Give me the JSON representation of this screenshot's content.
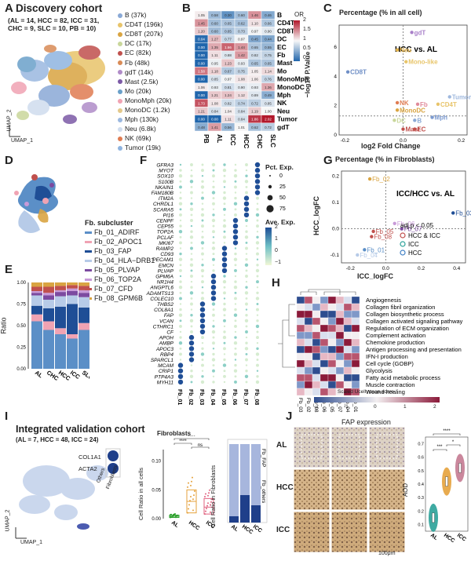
{
  "panels": {
    "A": {
      "letter": "A",
      "title": "Discovery cohort",
      "subtitle1": "(AL = 14, HCC = 82, ICC = 31,",
      "subtitle2": "CHC = 9, SLC = 10, PB = 10)",
      "umap2": "UMAP_2",
      "umap1": "UMAP_1",
      "legend": [
        {
          "label": "B (37k)",
          "color": "#8aa9d6"
        },
        {
          "label": "CD4T (196k)",
          "color": "#e8c46a"
        },
        {
          "label": "CD8T (207k)",
          "color": "#d9a441"
        },
        {
          "label": "DC (17k)",
          "color": "#c9d79b"
        },
        {
          "label": "EC (82k)",
          "color": "#c0504d"
        },
        {
          "label": "Fb (48k)",
          "color": "#d98b57"
        },
        {
          "label": "gdT (14k)",
          "color": "#b08cc8"
        },
        {
          "label": "Mast (2.5k)",
          "color": "#7c5aa6"
        },
        {
          "label": "Mo (20k)",
          "color": "#6aa0c9"
        },
        {
          "label": "MonoMph (20k)",
          "color": "#f0a3b3"
        },
        {
          "label": "MonoDC (1.2k)",
          "color": "#e3c88a"
        },
        {
          "label": "Mph (130k)",
          "color": "#9bb8e0"
        },
        {
          "label": "Neu (6.8k)",
          "color": "#cfdcee"
        },
        {
          "label": "NK (69k)",
          "color": "#e07c52"
        },
        {
          "label": "Tumor (19k)",
          "color": "#8fb4e0"
        }
      ]
    },
    "B": {
      "letter": "B",
      "rows": [
        "B",
        "CD4T",
        "CD8T",
        "DC",
        "EC",
        "Fb",
        "Mast",
        "Mo",
        "MonoMph",
        "MonoDC",
        "Mph",
        "NK",
        "Neu",
        "Tumor",
        "gdT"
      ],
      "cols": [
        "PB",
        "AL",
        "ICC",
        "HCC",
        "CHC",
        "SLC"
      ],
      "legend_title": "OR",
      "legend_ticks": [
        "2",
        "1.5",
        "1",
        "0.5",
        "0"
      ],
      "values": [
        [
          "1.05",
          "0.58",
          "0.30",
          "0.60",
          "1.46",
          "0.46"
        ],
        [
          "1.45",
          "0.60",
          "0.65",
          "0.62",
          "1.10",
          "0.66"
        ],
        [
          "1.20",
          "0.60",
          "0.65",
          "0.73",
          "0.97",
          "0.90"
        ],
        [
          "0.04",
          "1.27",
          "0.77",
          "0.97",
          "0.45",
          "0.44"
        ],
        [
          "0.00",
          "1.35",
          "1.66",
          "1.44",
          "0.65",
          "0.55"
        ],
        [
          "0.00",
          "1.11",
          "0.88",
          "1.42",
          "0.82",
          "0.75"
        ],
        [
          "0.00",
          "0.95",
          "1.23",
          "0.93",
          "0.65",
          "0.65"
        ],
        [
          "1.58",
          "1.18",
          "0.67",
          "0.75",
          "1.05",
          "1.14"
        ],
        [
          "0.00",
          "0.85",
          "0.97",
          "1.08",
          "1.06",
          "0.76"
        ],
        [
          "1.06",
          "0.93",
          "0.81",
          "0.90",
          "0.93",
          "1.36"
        ],
        [
          "0.00",
          "1.21",
          "1.24",
          "1.12",
          "0.89",
          "0.49"
        ],
        [
          "1.73",
          "1.08",
          "0.82",
          "0.74",
          "0.72",
          "0.85"
        ],
        [
          "1.21",
          "0.84",
          "1.04",
          "0.84",
          "1.19",
          "1.00"
        ],
        [
          "0.00",
          "0.00",
          "1.11",
          "0.84",
          "1.86",
          "2.02"
        ],
        [
          "0.48",
          "1.41",
          "0.56",
          "1.01",
          "0.62",
          "0.72"
        ]
      ]
    },
    "C": {
      "letter": "C",
      "title": "Percentage (% in all cell)",
      "comparison": "HCC vs. AL",
      "xlabel": "log2 Fold Change",
      "ylabel": "−log10 P.Value",
      "xticks": [
        "-0.2",
        "0.0",
        "0.2"
      ],
      "yticks": [
        "0",
        "2",
        "4",
        "6"
      ],
      "points": [
        {
          "label": "gdT",
          "x": 0.03,
          "y": 7.0,
          "color": "#a980c9"
        },
        {
          "label": "Neu",
          "x": -0.02,
          "y": 5.8,
          "color": "#e3b24a"
        },
        {
          "label": "Mono-like",
          "x": 0.01,
          "y": 5.0,
          "color": "#e8c56a"
        },
        {
          "label": "CD8T",
          "x": -0.19,
          "y": 4.3,
          "color": "#6f8fc6"
        },
        {
          "label": "Tumor",
          "x": 0.16,
          "y": 2.6,
          "color": "#9fb8de"
        },
        {
          "label": "NK",
          "x": -0.02,
          "y": 2.2,
          "color": "#e07c52"
        },
        {
          "label": "Fb",
          "x": 0.05,
          "y": 2.1,
          "color": "#e08a9a"
        },
        {
          "label": "CD4T",
          "x": 0.12,
          "y": 2.1,
          "color": "#e8c46a"
        },
        {
          "label": "MonoDC",
          "x": -0.02,
          "y": 1.7,
          "color": "#d9a441"
        },
        {
          "label": "Mph",
          "x": 0.1,
          "y": 1.2,
          "color": "#7b9ad0"
        },
        {
          "label": "DC",
          "x": -0.03,
          "y": 1.0,
          "color": "#c9d79b"
        },
        {
          "label": "B",
          "x": 0.04,
          "y": 1.0,
          "color": "#8aa9d6"
        },
        {
          "label": "Mast",
          "x": 0.0,
          "y": 0.4,
          "color": "#c0504d"
        },
        {
          "label": "EC",
          "x": 0.04,
          "y": 0.4,
          "color": "#c0504d"
        }
      ]
    },
    "D": {
      "letter": "D",
      "legend_title": "Fb. subcluster",
      "legend": [
        {
          "label": "Fb_01_ADIRF",
          "color": "#5b8fc7"
        },
        {
          "label": "Fb_02_APOC1",
          "color": "#f0a3b3"
        },
        {
          "label": "Fb_03_FAP",
          "color": "#1f4e96"
        },
        {
          "label": "Fb_04_HLA−DRB1",
          "color": "#b7cbe8"
        },
        {
          "label": "Fb_05_PLVAP",
          "color": "#7c4aa0"
        },
        {
          "label": "Fb_06_TOP2A",
          "color": "#c89ad8"
        },
        {
          "label": "Fb_07_CFD",
          "color": "#c0504d"
        },
        {
          "label": "Fb_08_GPM6B",
          "color": "#d9a441"
        }
      ]
    },
    "E": {
      "letter": "E",
      "ylabel": "Ratio",
      "yticks": [
        "0.00",
        "0.25",
        "0.50",
        "0.75",
        "1.00"
      ],
      "cats": [
        "AL",
        "CHC",
        "HCC",
        "ICC",
        "SLC"
      ]
    },
    "F": {
      "letter": "F",
      "genes": [
        "GFRA3",
        "MYOT",
        "SOX10",
        "S100B",
        "NKAIN1",
        "FAM180B",
        "ITM2A",
        "CHRDL1",
        "SCARA5",
        "PI16",
        "CENPF",
        "CEP55",
        "TOP2A",
        "PCLAF",
        "MKI67",
        "RAMP2",
        "CD93",
        "PECAM1",
        "EMCN",
        "PLVAP",
        "GPM6A",
        "NR1H4",
        "ANGPTL6",
        "ADAMTS13",
        "COLEC10",
        "THBS2",
        "COL8A1",
        "FAP",
        "VCAN",
        "CTHRC1",
        "CF",
        "APOH",
        "AMBP",
        "APOC3",
        "RBP4",
        "SPARCL1",
        "MCAM",
        "CRIP1",
        "PTP4A3",
        "MYH11"
      ],
      "cols": [
        "Fb_01",
        "Fb_02",
        "Fb_03",
        "Fb_04",
        "Fb_05",
        "Fb_06",
        "Fb_07",
        "Fb_08"
      ],
      "pct_title": "Pct. Exp.",
      "pct_ticks": [
        "0",
        "25",
        "50",
        "75"
      ],
      "ave_title": "Ave. Exp.",
      "ave_ticks": [
        "2",
        "1",
        "0",
        "−1"
      ]
    },
    "G": {
      "letter": "G",
      "title": "Percentage (% in Fibroblasts)",
      "comparison": "ICC/HCC vs. AL",
      "xlabel": "ICC_logFC",
      "ylabel": "HCC_logFC",
      "xticks": [
        "-0.2",
        "0.0",
        "0.2",
        "0.4"
      ],
      "yticks": [
        "0.2",
        "0.1",
        "0.0",
        "-0.1"
      ],
      "adj": "adj.p < 0.05",
      "sig": [
        "HCC & ICC",
        "ICC",
        "HCC"
      ],
      "sig_colors": [
        "#c0504d",
        "#2aa198",
        "#3f7fc4"
      ],
      "points": [
        {
          "label": "Fb_02",
          "x": -0.09,
          "y": 0.19,
          "color": "#d9a441"
        },
        {
          "label": "Fb_03",
          "x": 0.38,
          "y": 0.06,
          "color": "#1f4e96"
        },
        {
          "label": "Fb_06",
          "x": 0.05,
          "y": 0.02,
          "color": "#c89ad8"
        },
        {
          "label": "Fb_07",
          "x": 0.09,
          "y": 0.0,
          "color": "#7c4aa0"
        },
        {
          "label": "Fb_05",
          "x": -0.07,
          "y": -0.01,
          "color": "#c0504d"
        },
        {
          "label": "Fb_08",
          "x": -0.08,
          "y": -0.03,
          "color": "#c0504d"
        },
        {
          "label": "Fb_01",
          "x": -0.12,
          "y": -0.08,
          "color": "#5b8fc7"
        },
        {
          "label": "Fb_04",
          "x": -0.16,
          "y": -0.1,
          "color": "#b7cbe8"
        }
      ]
    },
    "H": {
      "letter": "H",
      "terms": [
        "Angiogenesis",
        "Collagen fibril organization",
        "Collagen biosynthetic process",
        "Collagen activated signaling pathway",
        "Regulation of ECM organization",
        "Complement activation",
        "Chemokine production",
        "Antigen processing and presentation",
        "IFN-I production",
        "Cell cycle (GOBP)",
        "Glycolysis",
        "Fatty acid metabolic process",
        "Muscle contraction",
        "Wound healing"
      ],
      "cols": [
        "Fb_03",
        "Fb_02",
        "Fb_08",
        "Fb_06",
        "Fb_05",
        "Fb_07",
        "Fb_04",
        "Fb_01"
      ],
      "legend_title": "Scaled Ucell mean score",
      "legend_ticks": [
        "-2",
        "-1",
        "0",
        "1",
        "2"
      ]
    },
    "I": {
      "letter": "I",
      "title": "Integrated validation cohort",
      "subtitle": "(AL = 7, HCC = 48, ICC = 24)",
      "genes": [
        "COL1A1",
        "ACTA2"
      ],
      "groups": [
        "Others",
        "Fibroblasts"
      ],
      "umap2": "UMAP_2",
      "umap1": "UMAP_1",
      "box_title": "Fibroblasts",
      "box_ylabel": "Cell Ratio in all cells",
      "box_cats": [
        "AL",
        "HCC",
        "ICC"
      ],
      "box_sig": [
        "****",
        "****",
        "ns"
      ],
      "bar_ylabel": "Cell Ratio in Fibroblasts",
      "bar_cats": [
        "AL",
        "HCC",
        "ICC"
      ],
      "bar_groups": [
        "Fb_FAP",
        "Fb_others"
      ],
      "bar_yticks": [
        "0.00",
        "0.25",
        "0.50",
        "0.75",
        "1.00"
      ],
      "box_yticks": [
        "0.00",
        "0.05",
        "0.10"
      ]
    },
    "J": {
      "letter": "J",
      "title": "FAP expression",
      "rows": [
        "AL",
        "HCC",
        "ICC"
      ],
      "scale": "100μm",
      "ylabel": "AOD",
      "cats": [
        "AL",
        "HCC",
        "ICC"
      ],
      "sig": [
        "****",
        "***",
        "*"
      ],
      "yticks": [
        "0.1",
        "0.2",
        "0.3",
        "0.4",
        "0.5",
        "0.6",
        "0.7"
      ]
    }
  }
}
